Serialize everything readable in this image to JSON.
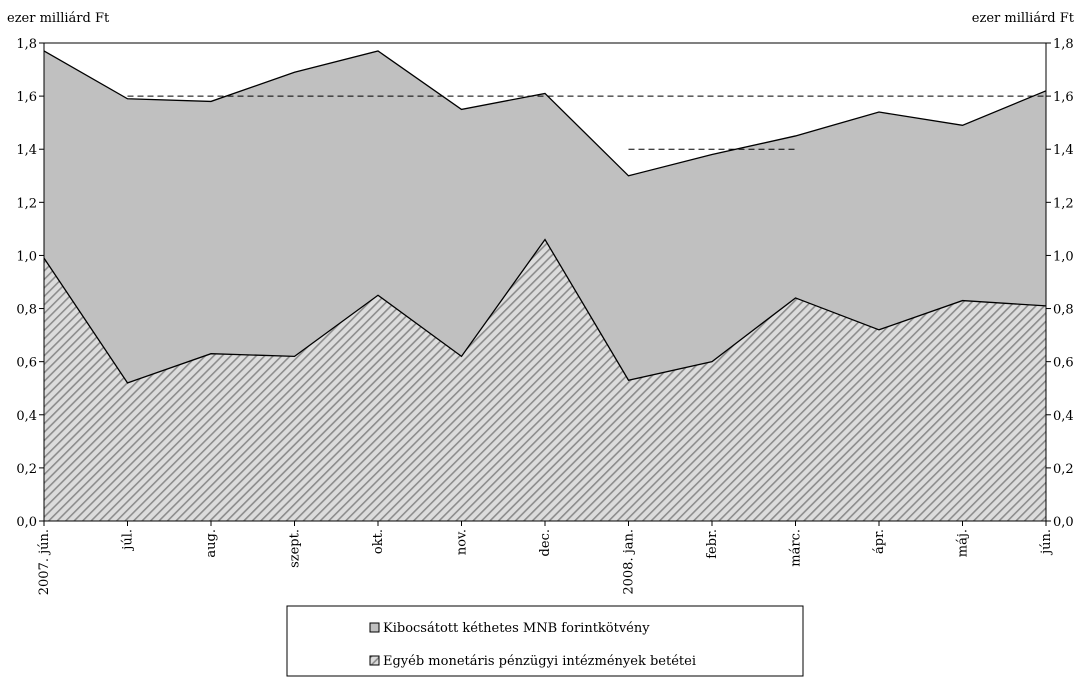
{
  "chart_data": {
    "type": "area",
    "stacked": true,
    "title": "",
    "ylabel_left": "ezer milliárd Ft",
    "ylabel_right": "ezer milliárd Ft",
    "ylim": [
      0,
      1.8
    ],
    "yticks": [
      "0,0",
      "0,2",
      "0,4",
      "0,6",
      "0,8",
      "1,0",
      "1,2",
      "1,4",
      "1,6",
      "1,8"
    ],
    "grid": false,
    "categories": [
      "2007. jún.",
      "júl.",
      "aug.",
      "szept.",
      "okt.",
      "nov.",
      "dec.",
      "2008. jan.",
      "febr.",
      "márc.",
      "ápr.",
      "máj.",
      "jún."
    ],
    "series": [
      {
        "name": "Egyéb monetáris pénzügyi intézmények betétei",
        "color": "#a6a6a6",
        "pattern": "diagonal-hatch",
        "values": [
          0.99,
          0.52,
          0.63,
          0.62,
          0.85,
          0.62,
          1.06,
          0.53,
          0.6,
          0.84,
          0.72,
          0.83,
          0.81
        ]
      },
      {
        "name": "Kibocsátott kéthetes MNB forintkötvény",
        "color": "#c0c0c0",
        "pattern": "solid",
        "values": [
          0.78,
          1.07,
          0.95,
          1.07,
          0.92,
          0.93,
          0.55,
          0.77,
          0.78,
          0.61,
          0.82,
          0.66,
          0.81
        ]
      }
    ],
    "reference_lines": [
      {
        "y": 1.6,
        "from_category": 1,
        "to_category": 12,
        "style": "dashed"
      },
      {
        "y": 1.4,
        "from_category": 7,
        "to_category": 9,
        "style": "dashed"
      }
    ],
    "legend": {
      "position": "bottom-center",
      "entries": [
        "Kibocsátott kéthetes MNB forintkötvény",
        "Egyéb monetáris pénzügyi intézmények betétei"
      ]
    }
  }
}
